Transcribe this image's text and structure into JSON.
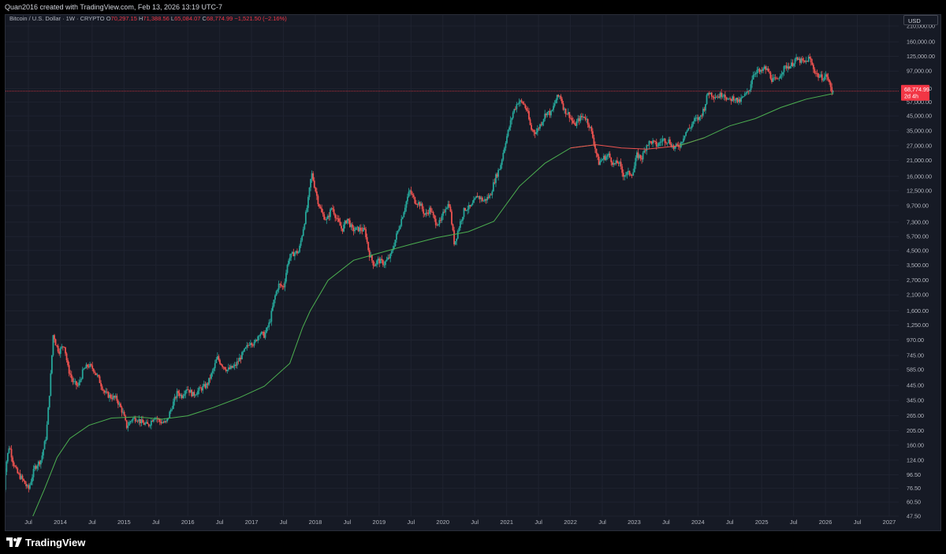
{
  "header": {
    "created_by": "Quan2016 created with TradingView.com, Feb 13, 2026 13:19 UTC-7"
  },
  "legend": {
    "symbol": "Bitcoin / U.S. Dollar · 1W · CRYPTO",
    "o_label": "O",
    "o_value": "70,297.15",
    "h_label": "H",
    "h_value": "71,388.56",
    "l_label": "L",
    "l_value": "65,084.07",
    "c_label": "C",
    "c_value": "68,774.99",
    "change": "−1,521.50 (−2.16%)"
  },
  "currency_button": "USD",
  "last_price": {
    "value": "68,774.99",
    "countdown": "2d 4h"
  },
  "brand": {
    "name": "TradingView",
    "icon": "tradingview-logo-icon"
  },
  "colors": {
    "background": "#161a25",
    "up": "#26a69a",
    "down": "#ef5350",
    "ma_above": "#4caf50",
    "ma_below": "#ef5350",
    "price_line": "#f23645"
  },
  "chart_data": {
    "type": "candlestick",
    "interval": "1W",
    "y_scale": "log",
    "y_ticks": [
      "210,000.00",
      "160,000.00",
      "125,000.00",
      "97,000.00",
      "72,000.00",
      "57,000.00",
      "45,000.00",
      "35,000.00",
      "27,000.00",
      "21,000.00",
      "16,000.00",
      "12,500.00",
      "9,700.00",
      "7,300.00",
      "5,700.00",
      "4,500.00",
      "3,500.00",
      "2,700.00",
      "2,100.00",
      "1,600.00",
      "1,250.00",
      "970.00",
      "745.00",
      "585.00",
      "445.00",
      "345.00",
      "265.00",
      "205.00",
      "160.00",
      "124.00",
      "96.50",
      "76.50",
      "60.50",
      "47.50"
    ],
    "x_ticks": [
      {
        "t": 2013.5,
        "label": "Jul"
      },
      {
        "t": 2014.0,
        "label": "2014"
      },
      {
        "t": 2014.5,
        "label": "Jul"
      },
      {
        "t": 2015.0,
        "label": "2015"
      },
      {
        "t": 2015.5,
        "label": "Jul"
      },
      {
        "t": 2016.0,
        "label": "2016"
      },
      {
        "t": 2016.5,
        "label": "Jul"
      },
      {
        "t": 2017.0,
        "label": "2017"
      },
      {
        "t": 2017.5,
        "label": "Jul"
      },
      {
        "t": 2018.0,
        "label": "2018"
      },
      {
        "t": 2018.5,
        "label": "Jul"
      },
      {
        "t": 2019.0,
        "label": "2019"
      },
      {
        "t": 2019.5,
        "label": "Jul"
      },
      {
        "t": 2020.0,
        "label": "2020"
      },
      {
        "t": 2020.5,
        "label": "Jul"
      },
      {
        "t": 2021.0,
        "label": "2021"
      },
      {
        "t": 2021.5,
        "label": "Jul"
      },
      {
        "t": 2022.0,
        "label": "2022"
      },
      {
        "t": 2022.5,
        "label": "Jul"
      },
      {
        "t": 2023.0,
        "label": "2023"
      },
      {
        "t": 2023.5,
        "label": "Jul"
      },
      {
        "t": 2024.0,
        "label": "2024"
      },
      {
        "t": 2024.5,
        "label": "Jul"
      },
      {
        "t": 2025.0,
        "label": "2025"
      },
      {
        "t": 2025.5,
        "label": "Jul"
      },
      {
        "t": 2026.0,
        "label": "2026"
      },
      {
        "t": 2026.5,
        "label": "Jul"
      },
      {
        "t": 2027.0,
        "label": "2027"
      }
    ],
    "price_path": [
      [
        2013.1,
        40
      ],
      [
        2013.16,
        110
      ],
      [
        2013.22,
        160
      ],
      [
        2013.28,
        120
      ],
      [
        2013.34,
        100
      ],
      [
        2013.42,
        90
      ],
      [
        2013.52,
        75
      ],
      [
        2013.62,
        110
      ],
      [
        2013.72,
        125
      ],
      [
        2013.8,
        190
      ],
      [
        2013.86,
        450
      ],
      [
        2013.91,
        1100
      ],
      [
        2013.95,
        900
      ],
      [
        2014.0,
        800
      ],
      [
        2014.08,
        900
      ],
      [
        2014.14,
        600
      ],
      [
        2014.22,
        470
      ],
      [
        2014.3,
        440
      ],
      [
        2014.38,
        580
      ],
      [
        2014.46,
        630
      ],
      [
        2014.54,
        590
      ],
      [
        2014.62,
        500
      ],
      [
        2014.72,
        390
      ],
      [
        2014.8,
        370
      ],
      [
        2014.9,
        355
      ],
      [
        2015.0,
        280
      ],
      [
        2015.06,
        220
      ],
      [
        2015.14,
        250
      ],
      [
        2015.22,
        255
      ],
      [
        2015.3,
        235
      ],
      [
        2015.4,
        225
      ],
      [
        2015.5,
        265
      ],
      [
        2015.58,
        240
      ],
      [
        2015.68,
        235
      ],
      [
        2015.78,
        320
      ],
      [
        2015.86,
        400
      ],
      [
        2015.92,
        370
      ],
      [
        2016.0,
        430
      ],
      [
        2016.1,
        380
      ],
      [
        2016.22,
        420
      ],
      [
        2016.32,
        450
      ],
      [
        2016.42,
        580
      ],
      [
        2016.48,
        720
      ],
      [
        2016.54,
        650
      ],
      [
        2016.64,
        580
      ],
      [
        2016.76,
        620
      ],
      [
        2016.86,
        740
      ],
      [
        2016.96,
        880
      ],
      [
        2017.0,
        960
      ],
      [
        2017.06,
        900
      ],
      [
        2017.14,
        1100
      ],
      [
        2017.22,
        1050
      ],
      [
        2017.3,
        1300
      ],
      [
        2017.38,
        2000
      ],
      [
        2017.44,
        2500
      ],
      [
        2017.52,
        2400
      ],
      [
        2017.6,
        3900
      ],
      [
        2017.68,
        4300
      ],
      [
        2017.76,
        4400
      ],
      [
        2017.84,
        7000
      ],
      [
        2017.9,
        10000
      ],
      [
        2017.96,
        17000
      ],
      [
        2018.0,
        14000
      ],
      [
        2018.06,
        10500
      ],
      [
        2018.12,
        8500
      ],
      [
        2018.2,
        7500
      ],
      [
        2018.28,
        9500
      ],
      [
        2018.36,
        7600
      ],
      [
        2018.44,
        6400
      ],
      [
        2018.52,
        7800
      ],
      [
        2018.6,
        6400
      ],
      [
        2018.7,
        6500
      ],
      [
        2018.8,
        6300
      ],
      [
        2018.86,
        4300
      ],
      [
        2018.94,
        3500
      ],
      [
        2019.0,
        3800
      ],
      [
        2019.1,
        3600
      ],
      [
        2019.2,
        4100
      ],
      [
        2019.3,
        6000
      ],
      [
        2019.38,
        8000
      ],
      [
        2019.46,
        11000
      ],
      [
        2019.5,
        12500
      ],
      [
        2019.58,
        10500
      ],
      [
        2019.66,
        10000
      ],
      [
        2019.74,
        8200
      ],
      [
        2019.82,
        9200
      ],
      [
        2019.9,
        7300
      ],
      [
        2019.98,
        7200
      ],
      [
        2020.06,
        9500
      ],
      [
        2020.12,
        10000
      ],
      [
        2020.2,
        5000
      ],
      [
        2020.28,
        7000
      ],
      [
        2020.36,
        9200
      ],
      [
        2020.46,
        9400
      ],
      [
        2020.56,
        11500
      ],
      [
        2020.66,
        10500
      ],
      [
        2020.76,
        11500
      ],
      [
        2020.84,
        15500
      ],
      [
        2020.92,
        19000
      ],
      [
        2021.0,
        29000
      ],
      [
        2021.06,
        37000
      ],
      [
        2021.12,
        48000
      ],
      [
        2021.2,
        58000
      ],
      [
        2021.28,
        56000
      ],
      [
        2021.34,
        49000
      ],
      [
        2021.4,
        36000
      ],
      [
        2021.48,
        34000
      ],
      [
        2021.56,
        40000
      ],
      [
        2021.64,
        48000
      ],
      [
        2021.72,
        47000
      ],
      [
        2021.8,
        61000
      ],
      [
        2021.86,
        64000
      ],
      [
        2021.92,
        50000
      ],
      [
        2022.0,
        46000
      ],
      [
        2022.08,
        38000
      ],
      [
        2022.16,
        43000
      ],
      [
        2022.24,
        45000
      ],
      [
        2022.32,
        38000
      ],
      [
        2022.38,
        30000
      ],
      [
        2022.46,
        20000
      ],
      [
        2022.54,
        22000
      ],
      [
        2022.62,
        23000
      ],
      [
        2022.7,
        19500
      ],
      [
        2022.78,
        20500
      ],
      [
        2022.84,
        16500
      ],
      [
        2022.92,
        16800
      ],
      [
        2023.0,
        17000
      ],
      [
        2023.06,
        23000
      ],
      [
        2023.14,
        22000
      ],
      [
        2023.22,
        28000
      ],
      [
        2023.3,
        29000
      ],
      [
        2023.38,
        27000
      ],
      [
        2023.46,
        30000
      ],
      [
        2023.56,
        29500
      ],
      [
        2023.64,
        26000
      ],
      [
        2023.74,
        27500
      ],
      [
        2023.82,
        34000
      ],
      [
        2023.9,
        37000
      ],
      [
        2023.96,
        42000
      ],
      [
        2024.04,
        43000
      ],
      [
        2024.12,
        52000
      ],
      [
        2024.18,
        68000
      ],
      [
        2024.26,
        64000
      ],
      [
        2024.34,
        63000
      ],
      [
        2024.42,
        67000
      ],
      [
        2024.5,
        58000
      ],
      [
        2024.58,
        62000
      ],
      [
        2024.66,
        57000
      ],
      [
        2024.74,
        63000
      ],
      [
        2024.82,
        69000
      ],
      [
        2024.88,
        91000
      ],
      [
        2024.94,
        99000
      ],
      [
        2025.0,
        94000
      ],
      [
        2025.06,
        102000
      ],
      [
        2025.12,
        97000
      ],
      [
        2025.18,
        84000
      ],
      [
        2025.26,
        82000
      ],
      [
        2025.32,
        95000
      ],
      [
        2025.4,
        105000
      ],
      [
        2025.48,
        107000
      ],
      [
        2025.54,
        118000
      ],
      [
        2025.62,
        116000
      ],
      [
        2025.7,
        112000
      ],
      [
        2025.76,
        122000
      ],
      [
        2025.8,
        110000
      ],
      [
        2025.86,
        95000
      ],
      [
        2025.92,
        88000
      ],
      [
        2025.98,
        87000
      ],
      [
        2026.04,
        90000
      ],
      [
        2026.08,
        78000
      ],
      [
        2026.12,
        68774.99
      ]
    ],
    "ma_path": [
      [
        2013.55,
        45
      ],
      [
        2013.75,
        75
      ],
      [
        2013.95,
        130
      ],
      [
        2014.15,
        180
      ],
      [
        2014.45,
        225
      ],
      [
        2014.8,
        255
      ],
      [
        2015.2,
        260
      ],
      [
        2015.6,
        250
      ],
      [
        2016.0,
        265
      ],
      [
        2016.4,
        305
      ],
      [
        2016.8,
        360
      ],
      [
        2017.2,
        440
      ],
      [
        2017.6,
        650
      ],
      [
        2017.8,
        1200
      ],
      [
        2017.92,
        1600
      ],
      [
        2018.2,
        2700
      ],
      [
        2018.6,
        3800
      ],
      [
        2019.0,
        4300
      ],
      [
        2019.5,
        5000
      ],
      [
        2019.9,
        5600
      ],
      [
        2020.4,
        6200
      ],
      [
        2020.8,
        7400
      ],
      [
        2021.2,
        13500
      ],
      [
        2021.6,
        20000
      ],
      [
        2022.0,
        26000
      ],
      [
        2022.4,
        27500
      ],
      [
        2022.8,
        26000
      ],
      [
        2023.2,
        25500
      ],
      [
        2023.7,
        27000
      ],
      [
        2024.1,
        31000
      ],
      [
        2024.5,
        38000
      ],
      [
        2024.9,
        43000
      ],
      [
        2025.3,
        52000
      ],
      [
        2025.7,
        60000
      ],
      [
        2026.12,
        66000
      ]
    ],
    "ma_cross": [
      [
        2022.2,
        2023.9
      ]
    ]
  }
}
